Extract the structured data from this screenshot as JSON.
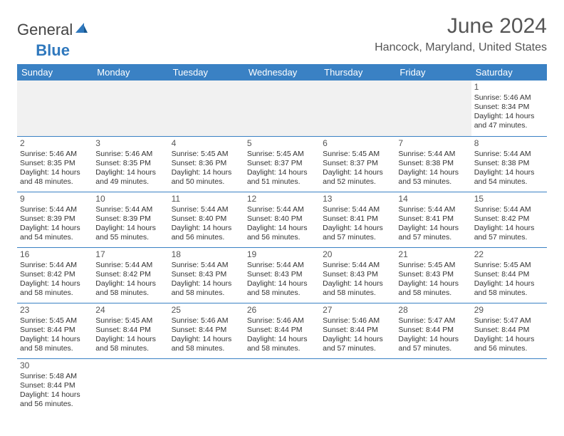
{
  "logo": {
    "text_general": "General",
    "text_blue": "Blue"
  },
  "title": "June 2024",
  "location": "Hancock, Maryland, United States",
  "colors": {
    "header_bg": "#3a81c4",
    "header_text": "#ffffff",
    "border": "#3a81c4",
    "empty_bg": "#f1f1f1",
    "logo_blue": "#2f78bd",
    "body_text": "#333333",
    "title_text": "#555555"
  },
  "day_headers": [
    "Sunday",
    "Monday",
    "Tuesday",
    "Wednesday",
    "Thursday",
    "Friday",
    "Saturday"
  ],
  "weeks": [
    [
      null,
      null,
      null,
      null,
      null,
      null,
      {
        "n": "1",
        "sr": "5:46 AM",
        "ss": "8:34 PM",
        "dl": "14 hours and 47 minutes."
      }
    ],
    [
      {
        "n": "2",
        "sr": "5:46 AM",
        "ss": "8:35 PM",
        "dl": "14 hours and 48 minutes."
      },
      {
        "n": "3",
        "sr": "5:46 AM",
        "ss": "8:35 PM",
        "dl": "14 hours and 49 minutes."
      },
      {
        "n": "4",
        "sr": "5:45 AM",
        "ss": "8:36 PM",
        "dl": "14 hours and 50 minutes."
      },
      {
        "n": "5",
        "sr": "5:45 AM",
        "ss": "8:37 PM",
        "dl": "14 hours and 51 minutes."
      },
      {
        "n": "6",
        "sr": "5:45 AM",
        "ss": "8:37 PM",
        "dl": "14 hours and 52 minutes."
      },
      {
        "n": "7",
        "sr": "5:44 AM",
        "ss": "8:38 PM",
        "dl": "14 hours and 53 minutes."
      },
      {
        "n": "8",
        "sr": "5:44 AM",
        "ss": "8:38 PM",
        "dl": "14 hours and 54 minutes."
      }
    ],
    [
      {
        "n": "9",
        "sr": "5:44 AM",
        "ss": "8:39 PM",
        "dl": "14 hours and 54 minutes."
      },
      {
        "n": "10",
        "sr": "5:44 AM",
        "ss": "8:39 PM",
        "dl": "14 hours and 55 minutes."
      },
      {
        "n": "11",
        "sr": "5:44 AM",
        "ss": "8:40 PM",
        "dl": "14 hours and 56 minutes."
      },
      {
        "n": "12",
        "sr": "5:44 AM",
        "ss": "8:40 PM",
        "dl": "14 hours and 56 minutes."
      },
      {
        "n": "13",
        "sr": "5:44 AM",
        "ss": "8:41 PM",
        "dl": "14 hours and 57 minutes."
      },
      {
        "n": "14",
        "sr": "5:44 AM",
        "ss": "8:41 PM",
        "dl": "14 hours and 57 minutes."
      },
      {
        "n": "15",
        "sr": "5:44 AM",
        "ss": "8:42 PM",
        "dl": "14 hours and 57 minutes."
      }
    ],
    [
      {
        "n": "16",
        "sr": "5:44 AM",
        "ss": "8:42 PM",
        "dl": "14 hours and 58 minutes."
      },
      {
        "n": "17",
        "sr": "5:44 AM",
        "ss": "8:42 PM",
        "dl": "14 hours and 58 minutes."
      },
      {
        "n": "18",
        "sr": "5:44 AM",
        "ss": "8:43 PM",
        "dl": "14 hours and 58 minutes."
      },
      {
        "n": "19",
        "sr": "5:44 AM",
        "ss": "8:43 PM",
        "dl": "14 hours and 58 minutes."
      },
      {
        "n": "20",
        "sr": "5:44 AM",
        "ss": "8:43 PM",
        "dl": "14 hours and 58 minutes."
      },
      {
        "n": "21",
        "sr": "5:45 AM",
        "ss": "8:43 PM",
        "dl": "14 hours and 58 minutes."
      },
      {
        "n": "22",
        "sr": "5:45 AM",
        "ss": "8:44 PM",
        "dl": "14 hours and 58 minutes."
      }
    ],
    [
      {
        "n": "23",
        "sr": "5:45 AM",
        "ss": "8:44 PM",
        "dl": "14 hours and 58 minutes."
      },
      {
        "n": "24",
        "sr": "5:45 AM",
        "ss": "8:44 PM",
        "dl": "14 hours and 58 minutes."
      },
      {
        "n": "25",
        "sr": "5:46 AM",
        "ss": "8:44 PM",
        "dl": "14 hours and 58 minutes."
      },
      {
        "n": "26",
        "sr": "5:46 AM",
        "ss": "8:44 PM",
        "dl": "14 hours and 58 minutes."
      },
      {
        "n": "27",
        "sr": "5:46 AM",
        "ss": "8:44 PM",
        "dl": "14 hours and 57 minutes."
      },
      {
        "n": "28",
        "sr": "5:47 AM",
        "ss": "8:44 PM",
        "dl": "14 hours and 57 minutes."
      },
      {
        "n": "29",
        "sr": "5:47 AM",
        "ss": "8:44 PM",
        "dl": "14 hours and 56 minutes."
      }
    ],
    [
      {
        "n": "30",
        "sr": "5:48 AM",
        "ss": "8:44 PM",
        "dl": "14 hours and 56 minutes."
      },
      null,
      null,
      null,
      null,
      null,
      null
    ]
  ],
  "labels": {
    "sunrise": "Sunrise:",
    "sunset": "Sunset:",
    "daylight": "Daylight:"
  }
}
